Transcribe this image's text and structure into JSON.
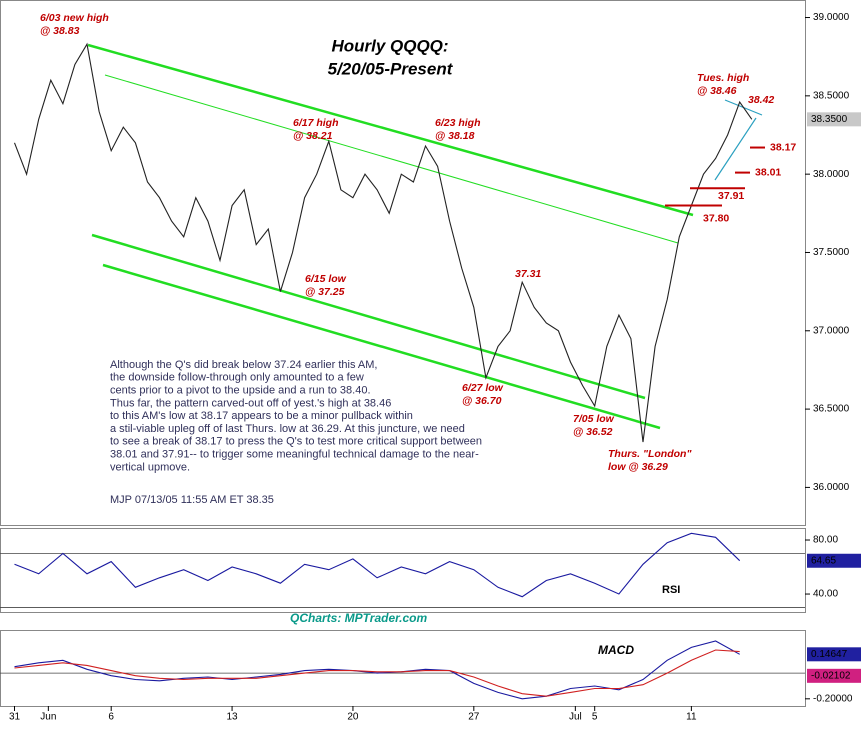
{
  "chart_data": [
    {
      "type": "line",
      "title": "Hourly QQQQ:",
      "subtitle": "5/20/05-Present",
      "x": [
        0,
        0.5,
        1,
        1.5,
        2,
        2.5,
        3,
        3.5,
        4,
        4.5,
        5,
        5.5,
        6,
        6.5,
        7,
        7.5,
        8,
        8.5,
        9,
        9.5,
        10,
        10.5,
        11,
        11.5,
        12,
        12.5,
        13,
        13.5,
        14,
        14.5,
        15,
        15.5,
        16,
        16.5,
        17,
        17.5,
        18,
        18.5,
        19,
        19.5,
        20,
        20.5,
        21,
        21.5,
        22,
        22.5,
        23,
        23.5,
        24,
        24.5,
        25,
        25.5,
        26,
        26.5,
        27,
        27.5,
        28,
        28.5,
        29,
        29.5,
        30,
        30.5
      ],
      "values": [
        38.2,
        38.0,
        38.35,
        38.6,
        38.45,
        38.7,
        38.83,
        38.4,
        38.15,
        38.3,
        38.2,
        37.95,
        37.85,
        37.7,
        37.6,
        37.85,
        37.7,
        37.45,
        37.8,
        37.9,
        37.55,
        37.65,
        37.25,
        37.5,
        37.85,
        38.0,
        38.21,
        37.9,
        37.85,
        38.0,
        37.9,
        37.75,
        38.0,
        37.95,
        38.18,
        38.05,
        37.7,
        37.4,
        37.15,
        36.7,
        36.9,
        37.0,
        37.31,
        37.15,
        37.05,
        37.0,
        36.8,
        36.65,
        36.52,
        36.9,
        37.1,
        36.95,
        36.29,
        36.9,
        37.2,
        37.6,
        37.8,
        38.0,
        38.1,
        38.25,
        38.46,
        38.35
      ],
      "color": "#222222",
      "xlim": [
        -0.6,
        32.7
      ],
      "xticks": [
        {
          "value": 0,
          "label": "31"
        },
        {
          "value": 1.4,
          "label": "Jun"
        },
        {
          "value": 4,
          "label": "6"
        },
        {
          "value": 9,
          "label": "13"
        },
        {
          "value": 14,
          "label": "20"
        },
        {
          "value": 19,
          "label": "27"
        },
        {
          "value": 23.2,
          "label": "Jul"
        },
        {
          "value": 24,
          "label": "5"
        },
        {
          "value": 28,
          "label": "11"
        }
      ],
      "ylim": [
        35.76,
        39.08
      ],
      "yticks": [
        {
          "value": 36,
          "label": "36.0000"
        },
        {
          "value": 36.5,
          "label": "36.5000"
        },
        {
          "value": 37,
          "label": "37.0000"
        },
        {
          "value": 37.5,
          "label": "37.5000"
        },
        {
          "value": 38,
          "label": "38.0000"
        },
        {
          "value": 38.5,
          "label": "38.5000"
        },
        {
          "value": 39,
          "label": "39.0000"
        }
      ],
      "last_value": {
        "value": 38.35,
        "label": "38.3500"
      },
      "annotations": [
        "6/03 new high",
        "@ 38.83",
        "6/17 high",
        "@ 38.21",
        "6/23 high",
        "@ 38.18",
        "6/15 low",
        "@ 37.25",
        "37.31",
        "6/27 low",
        "@ 36.70",
        "7/05 low",
        "@ 36.52",
        "Thurs. \"London\"",
        "low @ 36.29",
        "Tues. high",
        "@ 38.46",
        "38.42"
      ],
      "levels": [
        38.17,
        38.01,
        37.91,
        37.8
      ],
      "level_labels": [
        "38.17",
        "38.01",
        "37.91",
        "37.80"
      ],
      "commentary": [
        "Although the Q's did break below 37.24 earlier this AM,",
        "the downside follow-through only amounted to a few",
        "cents prior to a pivot to the upside and a run to 38.40.",
        "Thus far, the pattern carved-out off of yest.'s high at 38.46",
        "to this AM's low at 38.17 appears to be a minor pullback within",
        "a stil-viable upleg off of last Thurs. low at 36.29. At this juncture, we need",
        "to see a break of 38.17 to press the Q's to test more critical support between",
        "38.01 and 37.91-- to trigger some meaningful technical damage to the near-",
        "vertical upmove."
      ],
      "signature": "MJP 07/13/05 11:55 AM ET 38.35"
    },
    {
      "type": "line",
      "source": "QCharts: MPTrader.com",
      "x": [
        0,
        1,
        2,
        3,
        4,
        5,
        6,
        7,
        8,
        9,
        10,
        11,
        12,
        13,
        14,
        15,
        16,
        17,
        18,
        19,
        20,
        21,
        22,
        23,
        24,
        25,
        26,
        27,
        28,
        29,
        30
      ],
      "series": [
        {
          "name": "RSI",
          "color": "#1a1aa0",
          "values": [
            62,
            55,
            70,
            55,
            64,
            45,
            52,
            58,
            50,
            60,
            55,
            48,
            62,
            58,
            66,
            52,
            60,
            55,
            64,
            58,
            45,
            38,
            50,
            55,
            48,
            40,
            62,
            78,
            85,
            82,
            64.65
          ]
        }
      ],
      "xlim": [
        -0.6,
        32.7
      ],
      "ylim": [
        26.7,
        88.9
      ],
      "yticks": [
        {
          "value": 40,
          "label": "40.00"
        },
        {
          "value": 80,
          "label": "80.00"
        }
      ],
      "reference_lines": [
        70,
        30
      ],
      "last_value": {
        "value": 64.65,
        "label": "64.65"
      }
    },
    {
      "type": "line",
      "x": [
        0,
        1,
        2,
        3,
        4,
        5,
        6,
        7,
        8,
        9,
        10,
        11,
        12,
        13,
        14,
        15,
        16,
        17,
        18,
        19,
        20,
        21,
        22,
        23,
        24,
        25,
        26,
        27,
        28,
        29,
        30
      ],
      "series": [
        {
          "name": "MACD",
          "color": "#1a1aa0",
          "values": [
            0.05,
            0.08,
            0.1,
            0.03,
            -0.02,
            -0.05,
            -0.06,
            -0.04,
            -0.03,
            -0.05,
            -0.03,
            -0.01,
            0.02,
            0.03,
            0.02,
            0.0,
            0.01,
            0.03,
            0.02,
            -0.08,
            -0.15,
            -0.2,
            -0.18,
            -0.12,
            -0.1,
            -0.13,
            -0.05,
            0.1,
            0.2,
            0.25,
            0.14647
          ]
        },
        {
          "color": "#d02020",
          "values": [
            0.04,
            0.06,
            0.08,
            0.06,
            0.02,
            -0.02,
            -0.04,
            -0.05,
            -0.04,
            -0.04,
            -0.04,
            -0.02,
            0.0,
            0.02,
            0.02,
            0.01,
            0.01,
            0.02,
            0.02,
            -0.03,
            -0.1,
            -0.16,
            -0.18,
            -0.15,
            -0.12,
            -0.12,
            -0.09,
            0.0,
            0.1,
            0.18,
            0.16749
          ]
        }
      ],
      "xlim": [
        -0.6,
        32.7
      ],
      "ylim": [
        -0.256,
        0.328
      ],
      "yticks": [
        {
          "value": -0.2,
          "label": "-0.20000"
        }
      ],
      "reference_lines": [
        0
      ],
      "readouts": [
        {
          "value": 0.14647,
          "label": "0.14647"
        },
        {
          "value": -0.02102,
          "label": "-0.02102"
        }
      ]
    }
  ]
}
